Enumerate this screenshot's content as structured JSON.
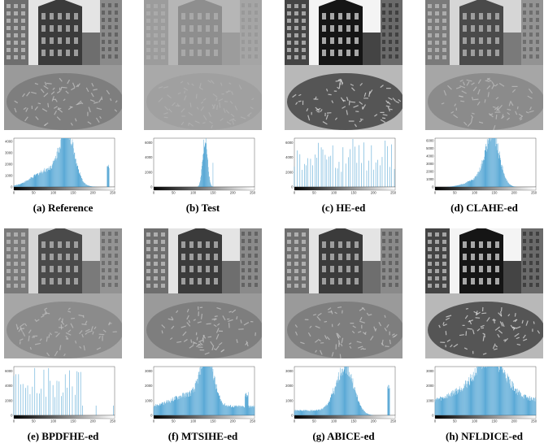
{
  "panels": [
    {
      "id": "a",
      "caption": "(a) Reference",
      "tone": "normal",
      "yticks": [
        "1000",
        "2000",
        "3000",
        "4000"
      ],
      "xticks": [
        "0",
        "50",
        "100",
        "150",
        "200",
        "250"
      ],
      "hist": {
        "kind": "smooth",
        "profile": "reference"
      }
    },
    {
      "id": "b",
      "caption": "(b) Test",
      "tone": "washed",
      "yticks": [
        "2000",
        "4000",
        "6000"
      ],
      "xticks": [
        "0",
        "50",
        "100",
        "150",
        "200",
        "250"
      ],
      "hist": {
        "kind": "narrow",
        "profile": "test"
      }
    },
    {
      "id": "c",
      "caption": "(c) HE-ed",
      "tone": "contrast",
      "yticks": [
        "2000",
        "4000",
        "6000"
      ],
      "xticks": [
        "0",
        "50",
        "100",
        "150",
        "200",
        "250"
      ],
      "hist": {
        "kind": "sparse",
        "profile": "he"
      }
    },
    {
      "id": "d",
      "caption": "(d) CLAHE-ed",
      "tone": "soft",
      "yticks": [
        "1000",
        "2000",
        "3000",
        "4000",
        "5000",
        "6000"
      ],
      "xticks": [
        "0",
        "50",
        "100",
        "150",
        "200",
        "250"
      ],
      "hist": {
        "kind": "smooth",
        "profile": "clahe"
      }
    },
    {
      "id": "e",
      "caption": "(e) BPDFHE-ed",
      "tone": "soft",
      "yticks": [
        "2000",
        "4000",
        "6000"
      ],
      "xticks": [
        "0",
        "50",
        "100",
        "150",
        "200",
        "250"
      ],
      "hist": {
        "kind": "sparse",
        "profile": "bpdfhe"
      }
    },
    {
      "id": "f",
      "caption": "(f) MTSIHE-ed",
      "tone": "normal",
      "yticks": [
        "1000",
        "2000",
        "3000"
      ],
      "xticks": [
        "0",
        "50",
        "100",
        "150",
        "200",
        "250"
      ],
      "hist": {
        "kind": "smooth",
        "profile": "mtsihe"
      }
    },
    {
      "id": "g",
      "caption": "(g) ABICE-ed",
      "tone": "normal",
      "yticks": [
        "1000",
        "2000",
        "3000"
      ],
      "xticks": [
        "0",
        "50",
        "100",
        "150",
        "200",
        "250"
      ],
      "hist": {
        "kind": "smooth",
        "profile": "abice"
      }
    },
    {
      "id": "h",
      "caption": "(h) NFLDICE-ed",
      "tone": "contrast",
      "yticks": [
        "1000",
        "2000",
        "3000"
      ],
      "xticks": [
        "0",
        "50",
        "100",
        "150",
        "200",
        "250"
      ],
      "hist": {
        "kind": "smooth",
        "profile": "nfldice"
      }
    }
  ],
  "colors": {
    "bar": "#5aa9d6",
    "axis": "#333333"
  }
}
